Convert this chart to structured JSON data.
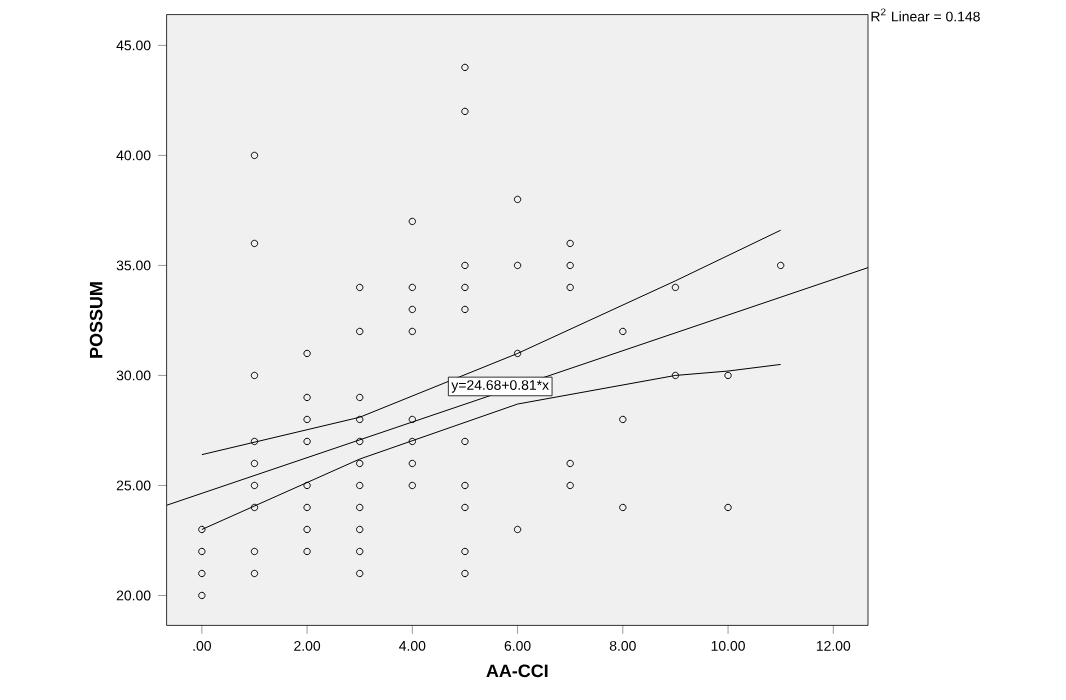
{
  "chart_data": {
    "type": "scatter",
    "xlabel": "AA-CCI",
    "ylabel": "POSSUM",
    "xlim": [
      -0.67,
      12.66
    ],
    "ylim": [
      18.64,
      46.4
    ],
    "xticks": [
      {
        "value": 0,
        "label": ".00"
      },
      {
        "value": 2,
        "label": "2.00"
      },
      {
        "value": 4,
        "label": "4.00"
      },
      {
        "value": 6,
        "label": "6.00"
      },
      {
        "value": 8,
        "label": "8.00"
      },
      {
        "value": 10,
        "label": "10.00"
      },
      {
        "value": 12,
        "label": "12.00"
      }
    ],
    "yticks": [
      {
        "value": 20,
        "label": "20.00"
      },
      {
        "value": 25,
        "label": "25.00"
      },
      {
        "value": 30,
        "label": "30.00"
      },
      {
        "value": 35,
        "label": "35.00"
      },
      {
        "value": 40,
        "label": "40.00"
      },
      {
        "value": 45,
        "label": "45.00"
      }
    ],
    "grid": false,
    "series": [
      {
        "marker": "circle",
        "color": "#000000",
        "x": [
          0,
          0,
          0,
          0,
          1,
          1,
          1,
          1,
          1,
          1,
          1,
          1,
          1,
          2,
          2,
          2,
          2,
          2,
          2,
          2,
          2,
          3,
          3,
          3,
          3,
          3,
          3,
          3,
          3,
          3,
          3,
          3,
          4,
          4,
          4,
          4,
          4,
          4,
          4,
          4,
          5,
          5,
          5,
          5,
          5,
          5,
          5,
          5,
          5,
          5,
          6,
          6,
          6,
          6,
          7,
          7,
          7,
          7,
          7,
          8,
          8,
          8,
          9,
          9,
          10,
          10,
          11
        ],
        "values": [
          23,
          22,
          21,
          20,
          40,
          36,
          30,
          27,
          26,
          25,
          24,
          22,
          21,
          31,
          29,
          28,
          27,
          25,
          24,
          23,
          22,
          34,
          32,
          29,
          28,
          27,
          26,
          25,
          24,
          23,
          22,
          21,
          37,
          34,
          33,
          32,
          28,
          27,
          26,
          25,
          44,
          42,
          35,
          34,
          33,
          27,
          25,
          24,
          22,
          21,
          38,
          35,
          31,
          23,
          36,
          35,
          34,
          26,
          25,
          32,
          28,
          24,
          34,
          30,
          30,
          24,
          35
        ]
      },
      {
        "type": "line",
        "marker": "none",
        "color": "#000000",
        "x": [
          -0.67,
          12.66
        ],
        "values": [
          24.1,
          34.9
        ]
      },
      {
        "type": "line",
        "marker": "none",
        "color": "#000000",
        "x": [
          0,
          3,
          6,
          9,
          11
        ],
        "values": [
          26.4,
          28.1,
          31.0,
          34.3,
          36.6
        ]
      },
      {
        "type": "line",
        "marker": "none",
        "color": "#000000",
        "x": [
          0,
          3,
          6,
          9,
          10,
          11
        ],
        "values": [
          23.0,
          26.2,
          28.7,
          30.0,
          30.2,
          30.5
        ]
      }
    ],
    "annotations": [
      {
        "text": "y=24.68+0.81*x",
        "x": 5.67,
        "y": 29.5
      },
      "R$^{2}$ Linear = 0.148"
    ]
  }
}
